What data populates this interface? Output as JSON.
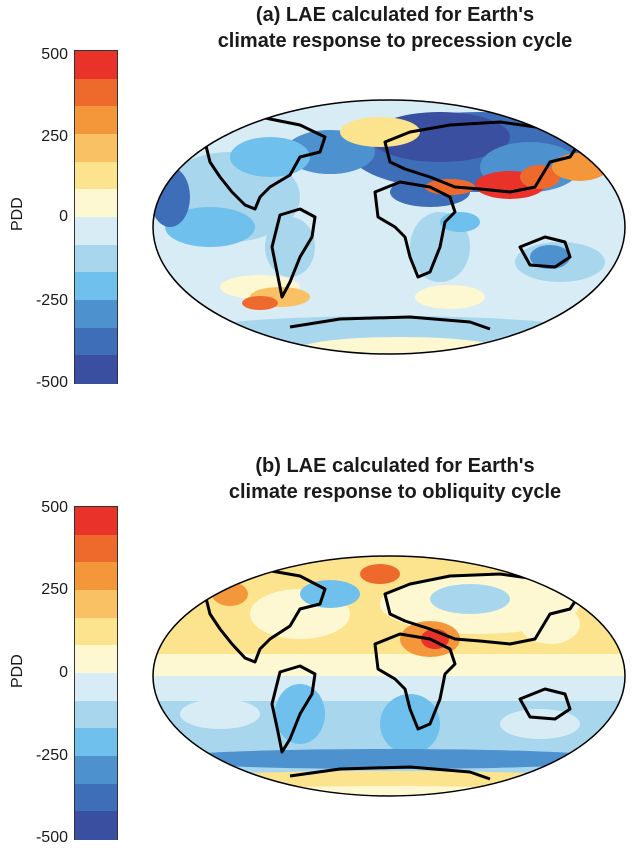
{
  "colorbar": {
    "label": "PDD",
    "ticks": [
      "500",
      "250",
      "0",
      "-250",
      "-500"
    ],
    "colors": [
      "#e8322a",
      "#ee6a2c",
      "#f4973a",
      "#f9c163",
      "#fce48e",
      "#fdf8d2",
      "#d7ecf4",
      "#a8d7ed",
      "#6fc0ec",
      "#4d91cf",
      "#3f6eb8",
      "#3a4f9f"
    ]
  },
  "panels": [
    {
      "title_line1": "(a) LAE calculated for Earth's",
      "title_line2": "climate response to precession cycle"
    },
    {
      "title_line1": "(b) LAE calculated for Earth's",
      "title_line2": "climate response to obliquity cycle"
    }
  ]
}
